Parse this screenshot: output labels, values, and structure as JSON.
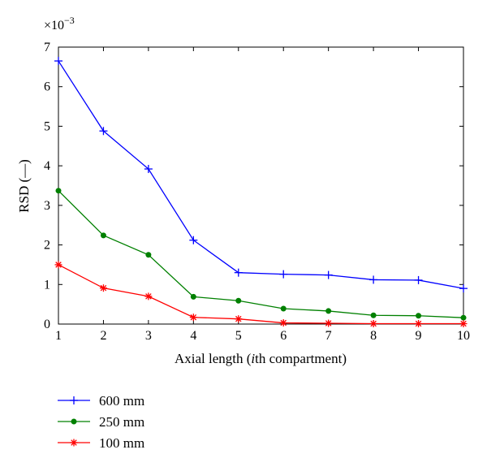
{
  "chart_data": {
    "type": "line",
    "title": "",
    "xlabel_parts": [
      "Axial length (",
      "i",
      "th compartment)"
    ],
    "ylabel": "RSD (—)",
    "y_multiplier": {
      "base": "×10",
      "exponent": "−3"
    },
    "x": [
      1,
      2,
      3,
      4,
      5,
      6,
      7,
      8,
      9,
      10
    ],
    "xlim": [
      1,
      10
    ],
    "ylim": [
      0,
      7
    ],
    "x_ticks": [
      "1",
      "2",
      "3",
      "4",
      "5",
      "6",
      "7",
      "8",
      "9",
      "10"
    ],
    "y_ticks": [
      "0",
      "1",
      "2",
      "3",
      "4",
      "5",
      "6",
      "7"
    ],
    "grid": false,
    "legend_position": "below",
    "series": [
      {
        "name": "600 mm",
        "color": "#0000ff",
        "marker": "plus",
        "values": [
          6.65,
          4.88,
          3.92,
          2.12,
          1.3,
          1.26,
          1.24,
          1.12,
          1.11,
          0.9
        ]
      },
      {
        "name": "250 mm",
        "color": "#008000",
        "marker": "dot",
        "values": [
          3.37,
          2.24,
          1.75,
          0.69,
          0.59,
          0.39,
          0.33,
          0.22,
          0.21,
          0.16
        ]
      },
      {
        "name": "100 mm",
        "color": "#ff0000",
        "marker": "star",
        "values": [
          1.5,
          0.91,
          0.7,
          0.17,
          0.13,
          0.03,
          0.02,
          0.01,
          0.01,
          0.01
        ]
      }
    ]
  }
}
